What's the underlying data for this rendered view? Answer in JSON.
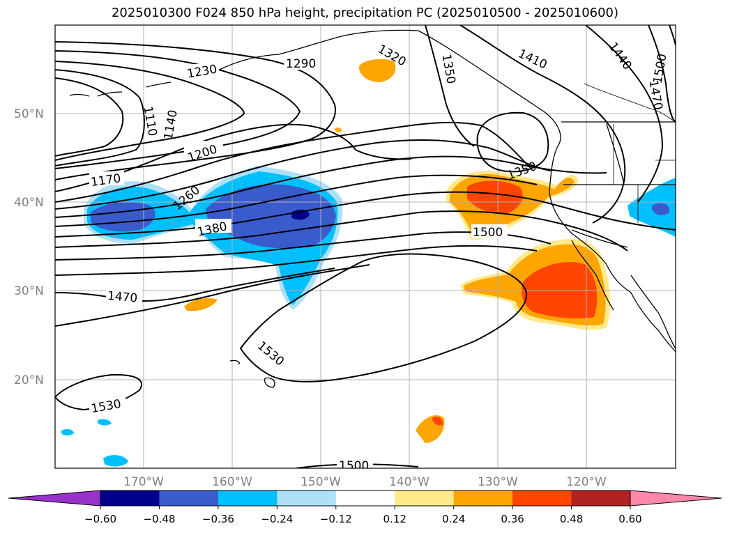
{
  "title": "2025010300 F024 850 hPa height, precipitation PC (2025010500 - 2025010600)",
  "lat_labels": [
    "50°N",
    "40°N",
    "30°N",
    "20°N"
  ],
  "lon_labels": [
    "170°W",
    "160°W",
    "150°W",
    "140°W",
    "130°W",
    "120°W"
  ],
  "contour_labels": [
    "1230",
    "1290",
    "1320",
    "1350",
    "1410",
    "1440",
    "1500",
    "1470",
    "1110",
    "1140",
    "1200",
    "1170",
    "1260",
    "1380",
    "1350",
    "1500",
    "1470",
    "1530",
    "1530",
    "1500"
  ],
  "colorbar": {
    "ticks": [
      "−0.60",
      "−0.48",
      "−0.36",
      "−0.24",
      "−0.12",
      "0.12",
      "0.24",
      "0.36",
      "0.48",
      "0.60"
    ],
    "colors": [
      "#9932cc",
      "#00008b",
      "#3a5bcc",
      "#00bfff",
      "#aee0f8",
      "#ffffff",
      "#ffe98a",
      "#ffa500",
      "#ff4500",
      "#b22222",
      "#ff88aa"
    ]
  }
}
